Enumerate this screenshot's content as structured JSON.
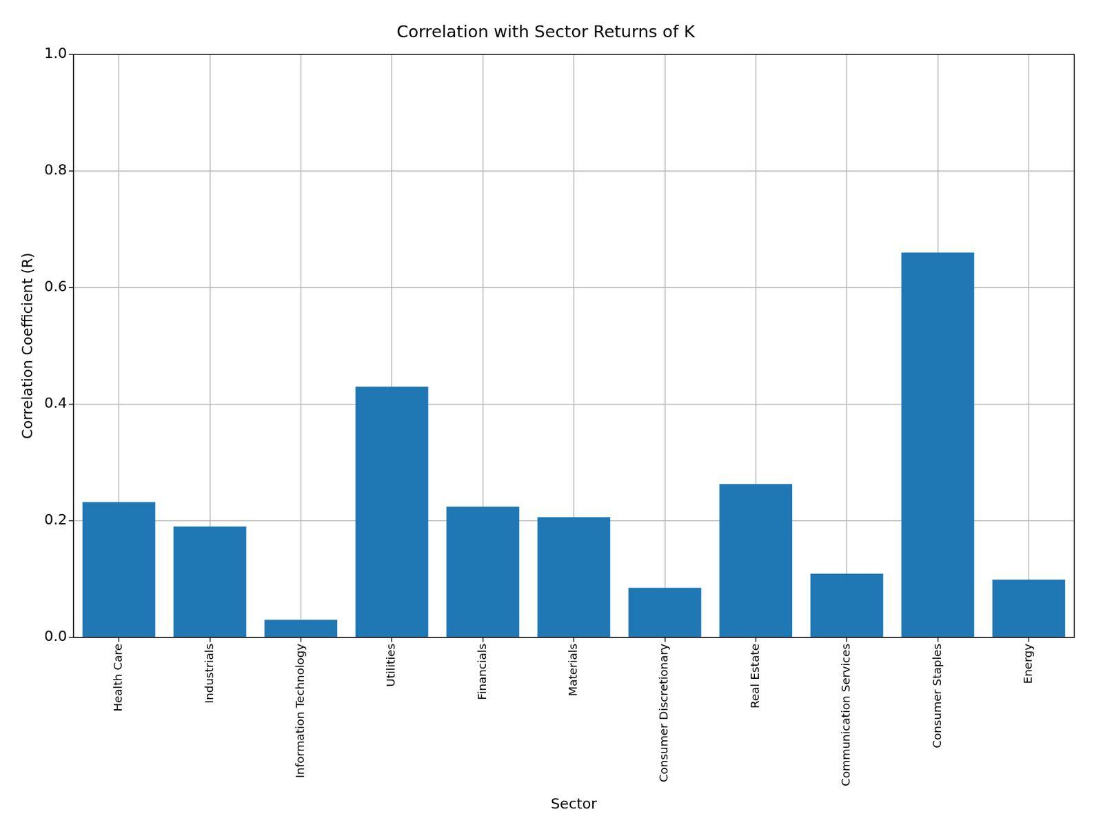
{
  "chart_data": {
    "type": "bar",
    "title": "Correlation with Sector Returns of K",
    "x_label": "Sector",
    "y_label": "Correlation Coefficient (R)",
    "categories": [
      "Health Care",
      "Industrials",
      "Information Technology",
      "Utilities",
      "Financials",
      "Materials",
      "Consumer Discretionary",
      "Real Estate",
      "Communication Services",
      "Consumer Staples",
      "Energy"
    ],
    "values": [
      0.232,
      0.19,
      0.03,
      0.43,
      0.224,
      0.206,
      0.085,
      0.263,
      0.109,
      0.66,
      0.099
    ],
    "color": "#1f77b4",
    "ylim": [
      0,
      1
    ],
    "yticks": [
      {
        "value": 0,
        "label": "0.0"
      },
      0.2,
      0.4,
      0.6,
      0.8,
      {
        "value": 1,
        "label": "1.0"
      }
    ],
    "grid": true
  }
}
